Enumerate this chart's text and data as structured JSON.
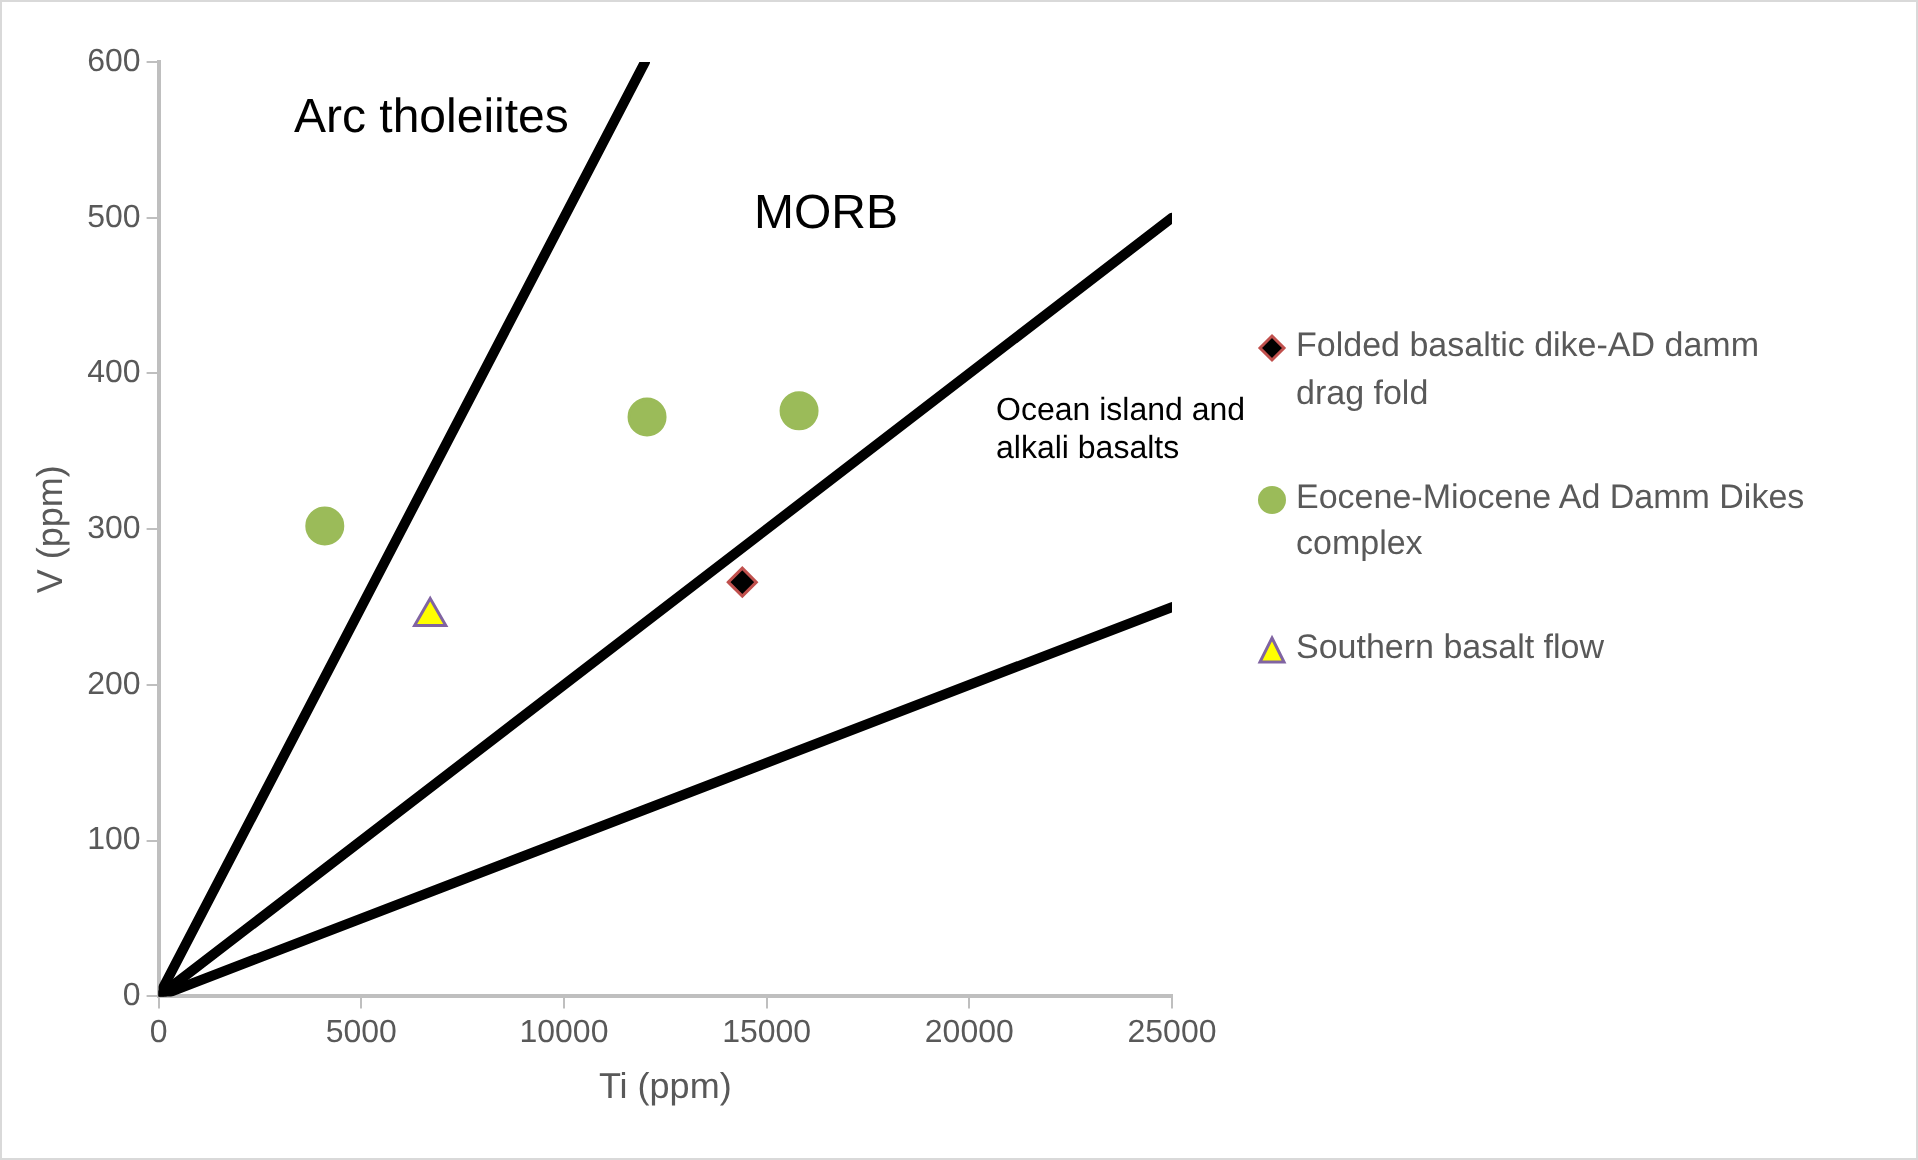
{
  "chart_data": {
    "type": "scatter",
    "xlabel": "Ti (ppm)",
    "ylabel": "V (ppm)",
    "xlim": [
      0,
      25000
    ],
    "ylim": [
      0,
      600
    ],
    "xticks": [
      0,
      5000,
      10000,
      15000,
      20000,
      25000
    ],
    "yticks": [
      0,
      100,
      200,
      300,
      400,
      500,
      600
    ],
    "grid": false,
    "legend": "right",
    "series": [
      {
        "type": "line",
        "color": "#000000",
        "marker": "none",
        "x": [
          0,
          12000
        ],
        "values": [
          0,
          600
        ]
      },
      {
        "type": "line",
        "color": "#000000",
        "marker": "none",
        "x": [
          0,
          25000
        ],
        "values": [
          0,
          500
        ]
      },
      {
        "type": "line",
        "color": "#000000",
        "marker": "none",
        "x": [
          0,
          25000
        ],
        "values": [
          0,
          250
        ]
      },
      {
        "name": "Folded basaltic dike-AD damm drag fold",
        "color": "#000000",
        "marker": "diamond",
        "x": [
          14400
        ],
        "values": [
          266
        ]
      },
      {
        "name": "Eocene-Miocene Ad Damm Dikes complex",
        "color": "#9bbb59",
        "marker": "circle",
        "x": [
          4100,
          12050,
          15800
        ],
        "values": [
          302,
          372,
          376
        ]
      },
      {
        "name": "Southern basalt flow",
        "color": "#ffff00",
        "marker": "triangle",
        "x": [
          6700
        ],
        "values": [
          244
        ]
      }
    ],
    "annotations": [
      "Arc tholeiites",
      "MORB",
      "Ocean island and alkali basalts"
    ]
  }
}
